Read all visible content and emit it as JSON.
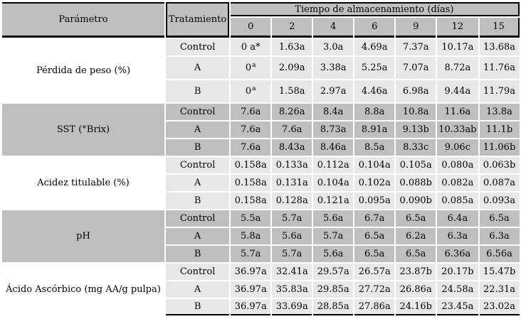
{
  "chart_data": {
    "type": "table",
    "header": {
      "parameter": "Parámetro",
      "treatment": "Tratamiento",
      "time_group": "Tiempo de almacenamiento (días)",
      "days": [
        "0",
        "2",
        "4",
        "6",
        "9",
        "12",
        "15"
      ]
    },
    "groups": [
      {
        "parameter": "Pérdida de peso (%)",
        "shade": "light",
        "rows": [
          {
            "treatment": "Control",
            "values": [
              "0 a*",
              "1.63a",
              "3.0a",
              "4.69a",
              "7.37a",
              "10.17a",
              "13.68a"
            ]
          },
          {
            "treatment": "A",
            "tall": true,
            "values": [
              "0^a",
              "2.09a",
              "3.38a",
              "5.25a",
              "7.07a",
              "8.72a",
              "11.76a"
            ]
          },
          {
            "treatment": "B",
            "tall": true,
            "values": [
              "0^a",
              "1.58a",
              "2.97a",
              "4.46a",
              "6.98a",
              "9.44a",
              "11.79a"
            ]
          }
        ]
      },
      {
        "parameter": "SST (°Brix)",
        "shade": "gray",
        "rows": [
          {
            "treatment": "Control",
            "values": [
              "7.6a",
              "8.26a",
              "8.4a",
              "8.8a",
              "10.8a",
              "11.6a",
              "13.8a"
            ]
          },
          {
            "treatment": "A",
            "values": [
              "7.6a",
              "7.6a",
              "8.73a",
              "8.91a",
              "9.13b",
              "10.33ab",
              "11.1b"
            ]
          },
          {
            "treatment": "B",
            "values": [
              "7.6a",
              "8.43a",
              "8.46a",
              "8.5a",
              "8.33c",
              "9.06c",
              "11.06b"
            ]
          }
        ]
      },
      {
        "parameter": "Acidez titulable (%)",
        "shade": "light",
        "rows": [
          {
            "treatment": "Control",
            "values": [
              "0.158a",
              "0.133a",
              "0.112a",
              "0.104a",
              "0.105a",
              "0.080a",
              "0.063b"
            ]
          },
          {
            "treatment": "A",
            "values": [
              "0.158a",
              "0.131a",
              "0.104a",
              "0.102a",
              "0.088b",
              "0.082a",
              "0.087a"
            ]
          },
          {
            "treatment": "B",
            "values": [
              "0.158a",
              "0.128a",
              "0.121a",
              "0.095a",
              "0.090b",
              "0.085a",
              "0.093a"
            ]
          }
        ]
      },
      {
        "parameter": "pH",
        "shade": "gray",
        "rows": [
          {
            "treatment": "Control",
            "values": [
              "5.5a",
              "5.7a",
              "5.6a",
              "6.7a",
              "6.5a",
              "6.4a",
              "6.5a"
            ]
          },
          {
            "treatment": "A",
            "values": [
              "5.8a",
              "5.6a",
              "5.7a",
              "6.5a",
              "6.2a",
              "6.3a",
              "6.3a"
            ]
          },
          {
            "treatment": "B",
            "values": [
              "5.7a",
              "5.7a",
              "5.6a",
              "6.5a",
              "6.5a",
              "6.36a",
              "6.56a"
            ]
          }
        ]
      },
      {
        "parameter": "Ácido Ascórbico (mg AA/g pulpa)",
        "shade": "light",
        "rows": [
          {
            "treatment": "Control",
            "values": [
              "36.97a",
              "32.41a",
              "29.57a",
              "26.57a",
              "23.87b",
              "20.17b",
              "15.47b"
            ]
          },
          {
            "treatment": "A",
            "values": [
              "36.97a",
              "35.83a",
              "29.85a",
              "27.72a",
              "26.86a",
              "24.58a",
              "22.31a"
            ]
          },
          {
            "treatment": "B",
            "values": [
              "36.97a",
              "33.69a",
              "28.85a",
              "27.86a",
              "24.16b",
              "23.45a",
              "23.02a"
            ]
          }
        ]
      }
    ],
    "colors": {
      "header_bg": "#bfbfbf",
      "gray_cell_bg": "#bfbfbf",
      "light_cell_bg": "#e8e8e8",
      "border": "#000000"
    }
  }
}
